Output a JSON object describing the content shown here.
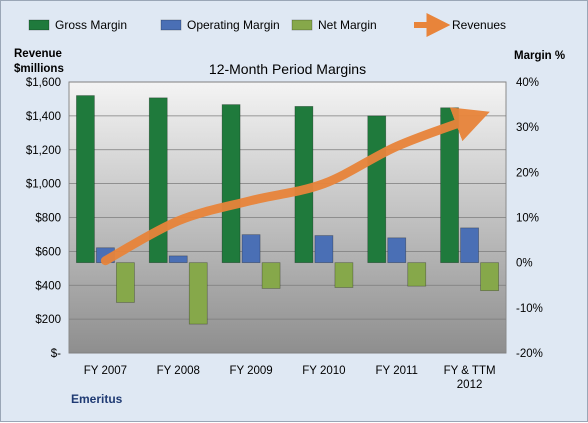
{
  "chart_data": {
    "type": "bar",
    "title": "12-Month Period Margins",
    "company": "Emeritus",
    "y_left_label": [
      "Revenue",
      "$millions"
    ],
    "y_right_label": "Margin %",
    "categories": [
      [
        "FY 2007"
      ],
      [
        "FY 2008"
      ],
      [
        "FY 2009"
      ],
      [
        "FY 2010"
      ],
      [
        "FY 2011"
      ],
      [
        "FY & TTM",
        "2012"
      ]
    ],
    "y_left": {
      "min": 0,
      "max": 1600,
      "step": 200,
      "ticks": [
        "$-",
        "$200",
        "$400",
        "$600",
        "$800",
        "$1,000",
        "$1,200",
        "$1,400",
        "$1,600"
      ]
    },
    "y_right": {
      "min": -20,
      "max": 40,
      "step": 10,
      "ticks": [
        "-20%",
        "-10%",
        "0%",
        "10%",
        "20%",
        "30%",
        "40%"
      ]
    },
    "series": [
      {
        "name": "Gross Margin",
        "axis": "right",
        "type": "bar",
        "color": "#1f7a3c",
        "values": [
          37,
          36.5,
          35,
          34.6,
          32.5,
          34.3
        ]
      },
      {
        "name": "Operating Margin",
        "axis": "right",
        "type": "bar",
        "color": "#4a6fb5",
        "values": [
          3.3,
          1.5,
          6.2,
          6,
          5.5,
          7.7
        ]
      },
      {
        "name": "Net Margin",
        "axis": "right",
        "type": "bar",
        "color": "#86a84a",
        "values": [
          -8.8,
          -13.6,
          -5.7,
          -5.5,
          -5.2,
          -6.2
        ]
      },
      {
        "name": "Revenues",
        "axis": "left",
        "type": "line",
        "color": "#e8843a",
        "values": [
          545,
          780,
          900,
          1000,
          1220,
          1380
        ]
      }
    ],
    "legend_position": "top"
  }
}
